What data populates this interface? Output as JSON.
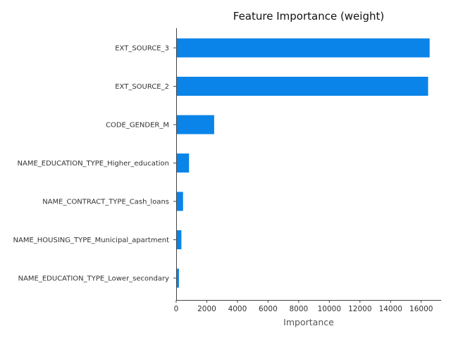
{
  "chart_data": {
    "type": "bar",
    "orientation": "horizontal",
    "title": "Feature Importance (weight)",
    "xlabel": "Importance",
    "ylabel": "",
    "xlim": [
      0,
      17300
    ],
    "xticks": [
      0,
      2000,
      4000,
      6000,
      8000,
      10000,
      12000,
      14000,
      16000
    ],
    "grid": false,
    "color": "#0a84e8",
    "categories": [
      "EXT_SOURCE_3",
      "EXT_SOURCE_2",
      "CODE_GENDER_M",
      "NAME_EDUCATION_TYPE_Higher_education",
      "NAME_CONTRACT_TYPE_Cash_loans",
      "NAME_HOUSING_TYPE_Municipal_apartment",
      "NAME_EDUCATION_TYPE_Lower_secondary"
    ],
    "values": [
      16550,
      16450,
      2480,
      840,
      450,
      340,
      180
    ]
  }
}
